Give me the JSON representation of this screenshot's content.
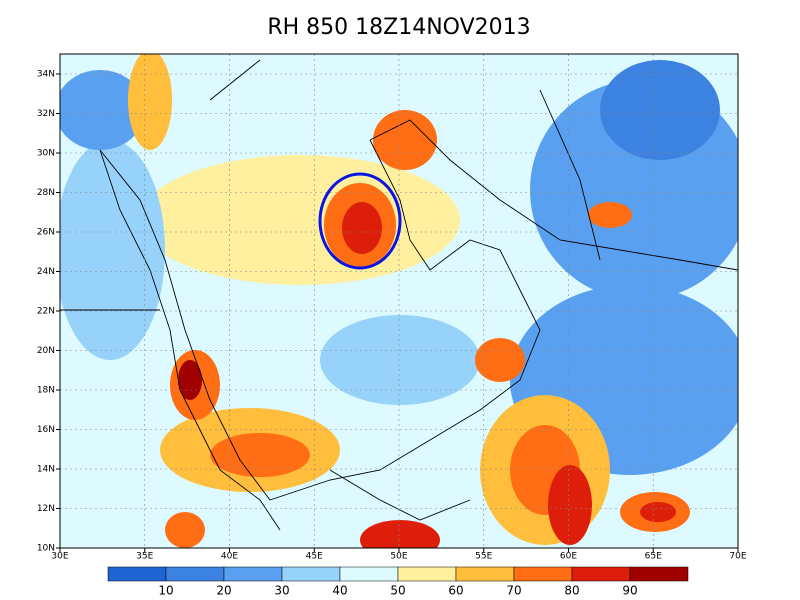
{
  "title": "RH 850 18Z14NOV2013",
  "map": {
    "x_ticks": [
      "30E",
      "35E",
      "40E",
      "45E",
      "50E",
      "55E",
      "60E",
      "65E",
      "70E"
    ],
    "y_ticks": [
      "10N",
      "12N",
      "14N",
      "16N",
      "18N",
      "20N",
      "22N",
      "24N",
      "26N",
      "28N",
      "30N",
      "32N",
      "34N"
    ]
  },
  "colorbar": {
    "labels": [
      "10",
      "20",
      "30",
      "40",
      "50",
      "60",
      "70",
      "80",
      "90"
    ],
    "colors": [
      "#1e64d2",
      "#3c82e1",
      "#5aa0f0",
      "#96d2fa",
      "#dcfaff",
      "#fff0a0",
      "#ffbe3c",
      "#ff6e14",
      "#dc1e0a",
      "#a00000"
    ]
  }
}
